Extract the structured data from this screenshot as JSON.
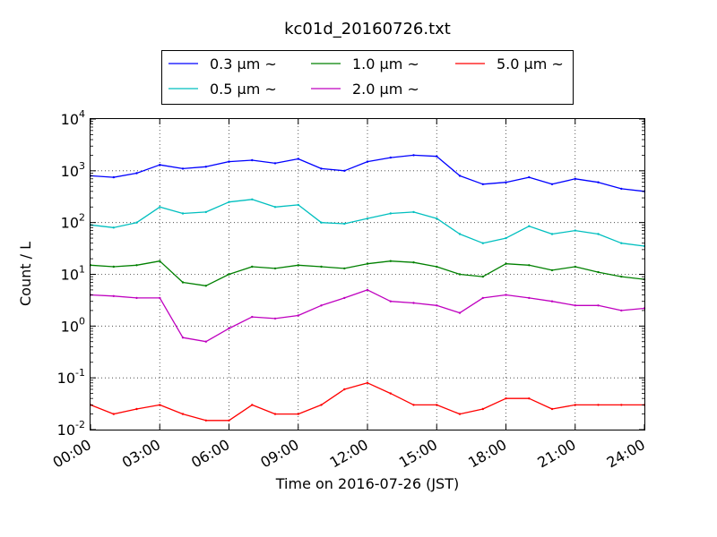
{
  "chart_data": {
    "type": "line",
    "title": "kc01d_20160726.txt",
    "xlabel": "Time on 2016-07-26 (JST)",
    "ylabel": "Count / L",
    "yscale": "log",
    "ylim": [
      0.01,
      10000
    ],
    "xlim": [
      "00:00",
      "24:00"
    ],
    "grid": true,
    "legend_position": "top",
    "x_tick_labels": [
      "00:00",
      "03:00",
      "06:00",
      "09:00",
      "12:00",
      "15:00",
      "18:00",
      "21:00",
      "24:00"
    ],
    "y_ticks": [
      {
        "base": "10",
        "exp": "-2",
        "value": 0.01
      },
      {
        "base": "10",
        "exp": "-1",
        "value": 0.1
      },
      {
        "base": "10",
        "exp": "0",
        "value": 1
      },
      {
        "base": "10",
        "exp": "1",
        "value": 10
      },
      {
        "base": "10",
        "exp": "2",
        "value": 100
      },
      {
        "base": "10",
        "exp": "3",
        "value": 1000
      },
      {
        "base": "10",
        "exp": "4",
        "value": 10000
      }
    ],
    "x_hours": [
      0,
      1,
      2,
      3,
      4,
      5,
      6,
      7,
      8,
      9,
      10,
      11,
      12,
      13,
      14,
      15,
      16,
      17,
      18,
      19,
      20,
      21,
      22,
      23,
      24
    ],
    "series": [
      {
        "name": "0.3 μm ~",
        "color": "#0000ff",
        "values": [
          800,
          750,
          900,
          1300,
          1100,
          1200,
          1500,
          1600,
          1400,
          1700,
          1100,
          1000,
          1500,
          1800,
          2000,
          1900,
          800,
          550,
          600,
          750,
          550,
          700,
          600,
          450,
          400
        ]
      },
      {
        "name": "0.5 μm ~",
        "color": "#00bfbf",
        "values": [
          90,
          80,
          100,
          200,
          150,
          160,
          250,
          280,
          200,
          220,
          100,
          95,
          120,
          150,
          160,
          120,
          60,
          40,
          50,
          85,
          60,
          70,
          60,
          40,
          35
        ]
      },
      {
        "name": "1.0 μm ~",
        "color": "#008000",
        "values": [
          15,
          14,
          15,
          18,
          7,
          6,
          10,
          14,
          13,
          15,
          14,
          13,
          16,
          18,
          17,
          14,
          10,
          9,
          16,
          15,
          12,
          14,
          11,
          9,
          8
        ]
      },
      {
        "name": "2.0 μm ~",
        "color": "#bf00bf",
        "values": [
          4,
          3.8,
          3.5,
          3.5,
          0.6,
          0.5,
          0.9,
          1.5,
          1.4,
          1.6,
          2.5,
          3.5,
          5,
          3,
          2.8,
          2.5,
          1.8,
          3.5,
          4,
          3.5,
          3,
          2.5,
          2.5,
          2,
          2.2
        ]
      },
      {
        "name": "5.0 μm ~",
        "color": "#ff0000",
        "values": [
          0.03,
          0.02,
          0.025,
          0.03,
          0.02,
          0.015,
          0.015,
          0.03,
          0.02,
          0.02,
          0.03,
          0.06,
          0.08,
          0.05,
          0.03,
          0.03,
          0.02,
          0.025,
          0.04,
          0.04,
          0.025,
          0.03,
          0.03,
          0.03,
          0.03
        ]
      }
    ]
  }
}
